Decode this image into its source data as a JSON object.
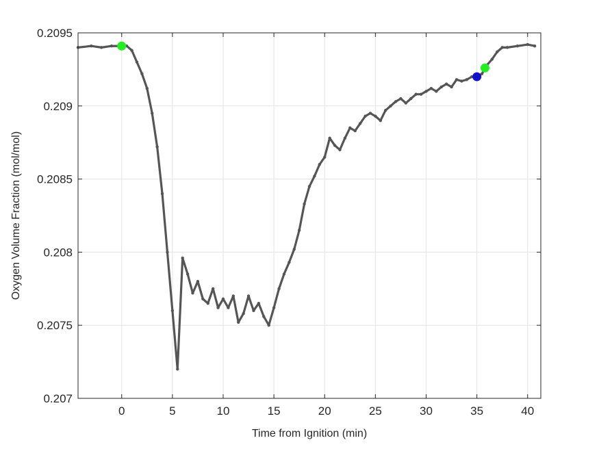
{
  "chart_data": {
    "type": "line",
    "title": "",
    "xlabel": "Time from Ignition (min)",
    "ylabel": "Oxygen Volume Fraction (mol/mol)",
    "xlim": [
      -4.3,
      41.3
    ],
    "ylim": [
      0.207,
      0.2095
    ],
    "grid": true,
    "x_ticks": [
      0,
      5,
      10,
      15,
      20,
      25,
      30,
      35,
      40
    ],
    "x_tick_labels": [
      "0",
      "5",
      "10",
      "15",
      "20",
      "25",
      "30",
      "35",
      "40"
    ],
    "y_ticks": [
      0.207,
      0.2075,
      0.208,
      0.2085,
      0.209,
      0.2095
    ],
    "y_tick_labels": [
      "0.207",
      "0.2075",
      "0.208",
      "0.2085",
      "0.209",
      "0.2095"
    ],
    "colors": {
      "series": "#555555",
      "marker_start": "#22ee22",
      "marker_end": "#22ee22",
      "marker_mid": "#1111cc",
      "grid": "#e3e3e3",
      "axis": "#262626"
    },
    "series": [
      {
        "x": [
          -4.3,
          -3,
          -2,
          -1,
          0,
          0.5,
          1,
          1.5,
          2,
          2.5,
          3,
          3.5,
          4,
          4.5,
          5,
          5.5,
          6,
          6.5,
          7,
          7.5,
          8,
          8.5,
          9,
          9.5,
          10,
          10.5,
          11,
          11.5,
          12,
          12.5,
          13,
          13.5,
          14,
          14.5,
          15,
          15.5,
          16,
          16.5,
          17,
          17.5,
          18,
          18.5,
          19,
          19.5,
          20,
          20.5,
          21,
          21.5,
          22,
          22.5,
          23,
          23.5,
          24,
          24.5,
          25,
          25.5,
          26,
          26.5,
          27,
          27.5,
          28,
          28.5,
          29,
          29.5,
          30,
          30.5,
          31,
          31.5,
          32,
          32.5,
          33,
          33.5,
          34,
          34.5,
          35,
          35.5,
          36,
          36.5,
          37,
          37.5,
          38,
          39,
          40,
          40.7
        ],
        "y": [
          0.2094,
          0.20941,
          0.2094,
          0.20941,
          0.20941,
          0.20941,
          0.20938,
          0.2093,
          0.20922,
          0.20912,
          0.20895,
          0.20872,
          0.2084,
          0.208,
          0.2076,
          0.2072,
          0.20796,
          0.20785,
          0.20772,
          0.2078,
          0.20768,
          0.20765,
          0.20775,
          0.20762,
          0.20768,
          0.20762,
          0.2077,
          0.20752,
          0.20758,
          0.2077,
          0.2076,
          0.20765,
          0.20756,
          0.2075,
          0.20762,
          0.20775,
          0.20785,
          0.20793,
          0.20802,
          0.20815,
          0.20833,
          0.20845,
          0.20852,
          0.2086,
          0.20865,
          0.20878,
          0.20873,
          0.2087,
          0.20878,
          0.20885,
          0.20883,
          0.20888,
          0.20893,
          0.20895,
          0.20893,
          0.2089,
          0.20897,
          0.209,
          0.20903,
          0.20905,
          0.20902,
          0.20905,
          0.20908,
          0.20908,
          0.2091,
          0.20912,
          0.2091,
          0.20913,
          0.20915,
          0.20913,
          0.20918,
          0.20917,
          0.20918,
          0.2092,
          0.2092,
          0.20922,
          0.20928,
          0.20932,
          0.20937,
          0.2094,
          0.2094,
          0.20941,
          0.20942,
          0.20941
        ]
      }
    ],
    "markers": [
      {
        "x": 0.0,
        "y": 0.20941,
        "color": "#22ee22"
      },
      {
        "x": 35.0,
        "y": 0.2092,
        "color": "#1111cc"
      },
      {
        "x": 35.8,
        "y": 0.20926,
        "color": "#22ee22"
      }
    ]
  }
}
